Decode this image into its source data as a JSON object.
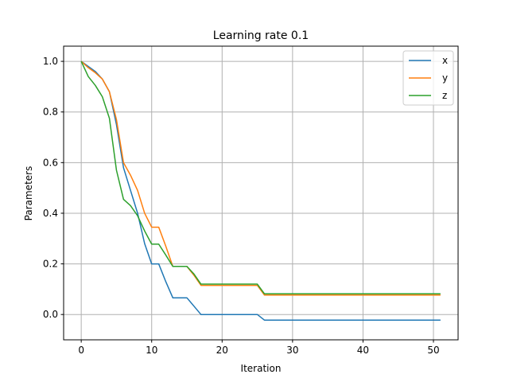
{
  "chart_data": {
    "type": "line",
    "title": "Learning rate 0.1",
    "xlabel": "Iteration",
    "ylabel": "Parameters",
    "xlim": [
      -2.5,
      53.5
    ],
    "ylim": [
      -0.1,
      1.06
    ],
    "xticks": [
      0,
      10,
      20,
      30,
      40,
      50
    ],
    "yticks": [
      0.0,
      0.2,
      0.4,
      0.6,
      0.8,
      1.0
    ],
    "ytick_labels": [
      "0.0",
      "0.2",
      "0.4",
      "0.6",
      "0.8",
      "1.0"
    ],
    "grid": true,
    "legend": "top-right",
    "x": [
      0,
      1,
      2,
      3,
      4,
      5,
      6,
      7,
      8,
      9,
      10,
      11,
      12,
      13,
      14,
      15,
      16,
      17,
      18,
      19,
      20,
      21,
      22,
      23,
      24,
      25,
      26,
      27,
      28,
      29,
      30,
      31,
      32,
      33,
      34,
      35,
      36,
      37,
      38,
      39,
      40,
      41,
      42,
      43,
      44,
      45,
      46,
      47,
      48,
      49,
      50,
      51
    ],
    "series": [
      {
        "name": "x",
        "color": "#1f77b4",
        "values": [
          1.0,
          0.98,
          0.96,
          0.93,
          0.88,
          0.75,
          0.58,
          0.49,
          0.4,
          0.28,
          0.2,
          0.2,
          0.13,
          0.066,
          0.066,
          0.066,
          0.033,
          0.0,
          0.0,
          0.0,
          0.0,
          0.0,
          0.0,
          0.0,
          0.0,
          0.0,
          -0.022,
          -0.022,
          -0.022,
          -0.022,
          -0.022,
          -0.022,
          -0.022,
          -0.022,
          -0.022,
          -0.022,
          -0.022,
          -0.022,
          -0.022,
          -0.022,
          -0.022,
          -0.022,
          -0.022,
          -0.022,
          -0.022,
          -0.022,
          -0.022,
          -0.022,
          -0.022,
          -0.022,
          -0.022,
          -0.022
        ]
      },
      {
        "name": "y",
        "color": "#ff7f0e",
        "values": [
          1.0,
          0.975,
          0.955,
          0.93,
          0.88,
          0.77,
          0.6,
          0.55,
          0.49,
          0.4,
          0.345,
          0.345,
          0.27,
          0.19,
          0.19,
          0.19,
          0.155,
          0.115,
          0.115,
          0.115,
          0.115,
          0.115,
          0.115,
          0.115,
          0.115,
          0.115,
          0.077,
          0.077,
          0.077,
          0.077,
          0.077,
          0.077,
          0.077,
          0.077,
          0.077,
          0.077,
          0.077,
          0.077,
          0.077,
          0.077,
          0.077,
          0.077,
          0.077,
          0.077,
          0.077,
          0.077,
          0.077,
          0.077,
          0.077,
          0.077,
          0.077,
          0.077
        ]
      },
      {
        "name": "z",
        "color": "#2ca02c",
        "values": [
          1.0,
          0.94,
          0.905,
          0.86,
          0.775,
          0.57,
          0.455,
          0.43,
          0.39,
          0.33,
          0.278,
          0.278,
          0.235,
          0.19,
          0.19,
          0.19,
          0.16,
          0.12,
          0.12,
          0.12,
          0.12,
          0.12,
          0.12,
          0.12,
          0.12,
          0.12,
          0.082,
          0.082,
          0.082,
          0.082,
          0.082,
          0.082,
          0.082,
          0.082,
          0.082,
          0.082,
          0.082,
          0.082,
          0.082,
          0.082,
          0.082,
          0.082,
          0.082,
          0.082,
          0.082,
          0.082,
          0.082,
          0.082,
          0.082,
          0.082,
          0.082,
          0.082
        ]
      }
    ]
  }
}
